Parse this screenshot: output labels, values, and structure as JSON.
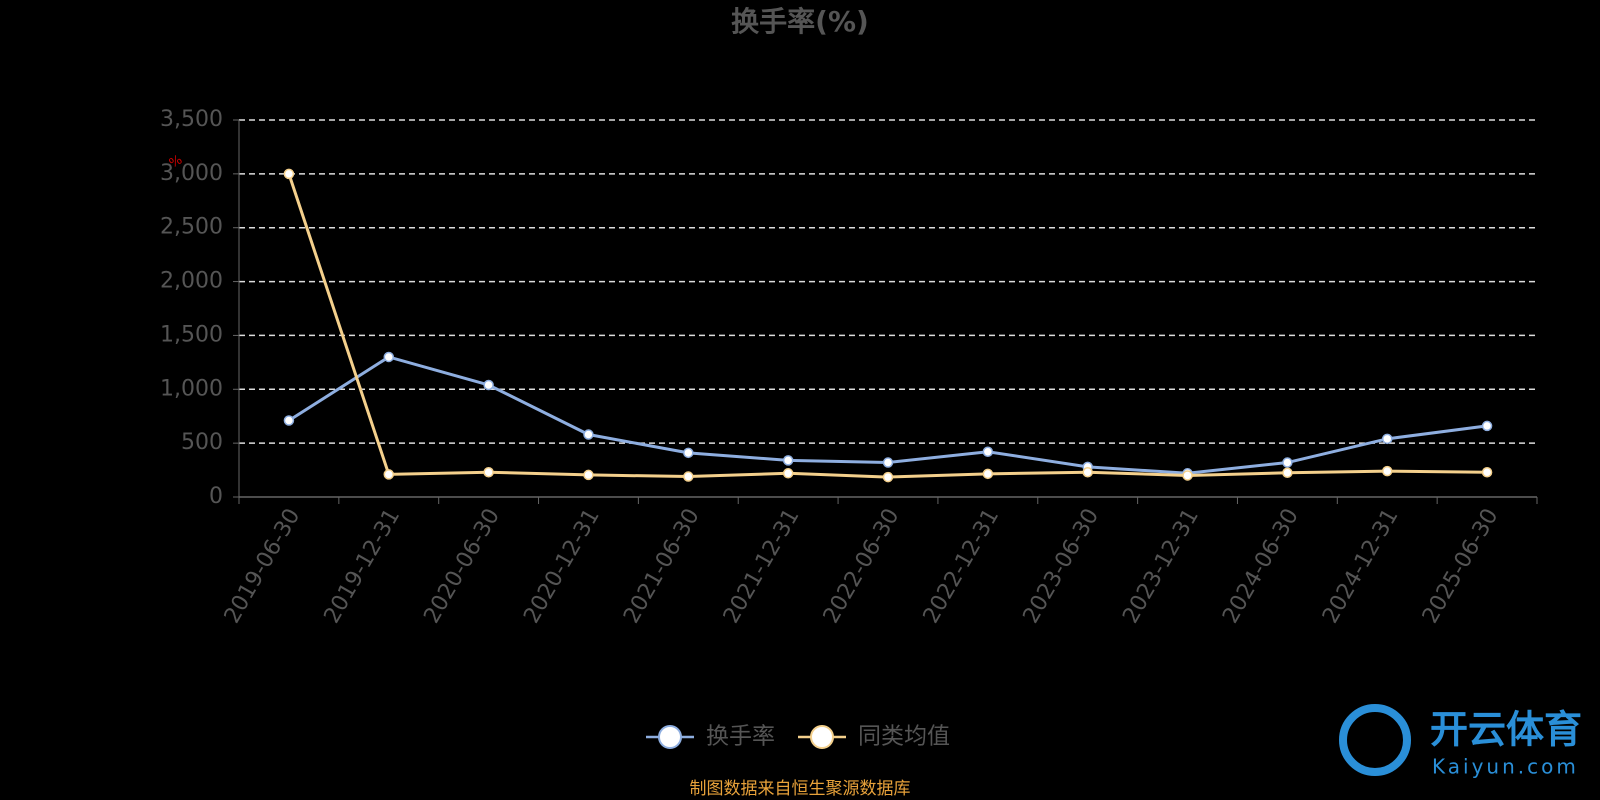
{
  "chart_data": {
    "type": "line",
    "title": "换手率(%)",
    "unit": "%",
    "categories": [
      "2019-06-30",
      "2019-12-31",
      "2020-06-30",
      "2020-12-31",
      "2021-06-30",
      "2021-12-31",
      "2022-06-30",
      "2022-12-31",
      "2023-06-30",
      "2023-12-31",
      "2024-06-30",
      "2024-12-31",
      "2025-06-30"
    ],
    "series": [
      {
        "name": "换手率",
        "color": "#8eaee0",
        "values": [
          710,
          1300,
          1040,
          580,
          410,
          340,
          320,
          420,
          280,
          220,
          320,
          540,
          660
        ]
      },
      {
        "name": "同类均值",
        "color": "#f4d08c",
        "values": [
          3000,
          210,
          230,
          205,
          190,
          220,
          185,
          215,
          230,
          200,
          225,
          240,
          230
        ]
      }
    ],
    "ylim": [
      0,
      3500
    ],
    "yticks": [
      0,
      500,
      {
        "value": 1000,
        "label": "1,000"
      },
      {
        "value": 1500,
        "label": "1,500"
      },
      {
        "value": 2000,
        "label": "2,000"
      },
      {
        "value": 2500,
        "label": "2,500"
      },
      {
        "value": 3000,
        "label": "3,000"
      },
      {
        "value": 3500,
        "label": "3,500"
      }
    ],
    "grid": true,
    "source": "制图数据来自恒生聚源数据库",
    "watermark": {
      "brand": "开云体育",
      "site": "Kaiyun.com"
    }
  }
}
